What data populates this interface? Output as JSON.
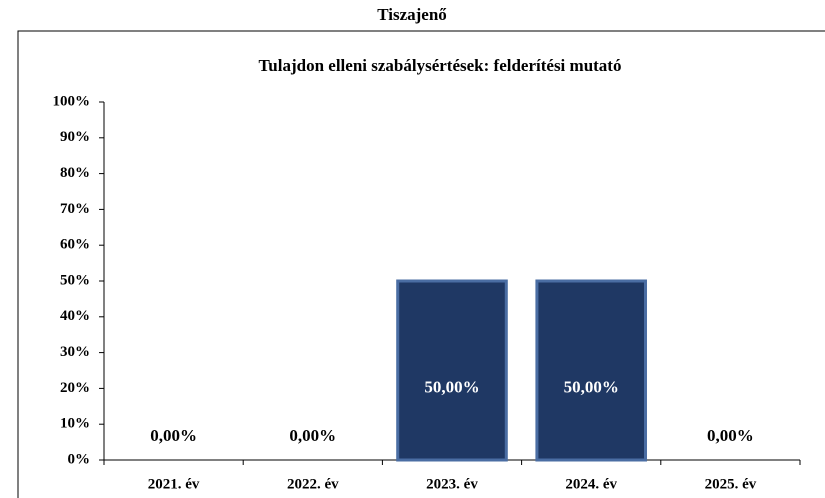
{
  "page_title": "Tiszajenő",
  "chart_data": {
    "type": "bar",
    "title": "Tulajdon elleni szabálysértések: felderítési mutató",
    "categories": [
      "2021. év",
      "2022. év",
      "2023. év",
      "2024. év",
      "2025. év"
    ],
    "values": [
      0,
      0,
      50,
      50,
      0
    ],
    "value_labels": [
      "0,00%",
      "0,00%",
      "50,00%",
      "50,00%",
      "0,00%"
    ],
    "color": "#1f3864",
    "ylim": [
      0,
      100
    ],
    "yticks": [
      {
        "value": 0,
        "label": "0%"
      },
      {
        "value": 10,
        "label": "10%"
      },
      {
        "value": 20,
        "label": "20%"
      },
      {
        "value": 30,
        "label": "30%"
      },
      {
        "value": 40,
        "label": "40%"
      },
      {
        "value": 50,
        "label": "50%"
      },
      {
        "value": 60,
        "label": "60%"
      },
      {
        "value": 70,
        "label": "70%"
      },
      {
        "value": 80,
        "label": "80%"
      },
      {
        "value": 90,
        "label": "90%"
      },
      {
        "value": 100,
        "label": "100%"
      }
    ]
  }
}
